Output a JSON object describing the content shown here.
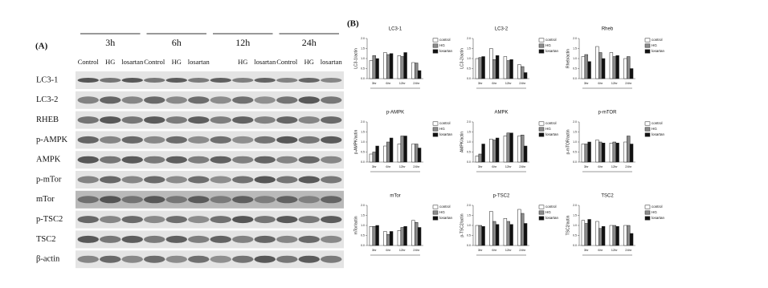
{
  "panel_a": {
    "label": "(A)",
    "groups": [
      {
        "time": "3h",
        "lanes": [
          "Control",
          "HG",
          "losartan"
        ]
      },
      {
        "time": "6h",
        "lanes": [
          "Control",
          "HG",
          "losartan"
        ]
      },
      {
        "time": "12h",
        "lanes": [
          "HG",
          "losartan"
        ]
      },
      {
        "time": "24h",
        "lanes": [
          "Control",
          "HG",
          "losartan"
        ]
      }
    ],
    "rows": [
      "LC3-1",
      "LC3-2",
      "RHEB",
      "p-AMPK",
      "AMPK",
      "p-mTor",
      "mTor",
      "p-TSC2",
      "TSC2",
      "β-actin"
    ]
  },
  "panel_b": {
    "label": "(B)"
  },
  "chart_data": [
    {
      "type": "bar",
      "title": "LC3-1",
      "y_label": "LC3-1/actin",
      "categories": [
        "3hr",
        "6hr",
        "12hr",
        "24hr"
      ],
      "ylim": [
        0,
        2
      ],
      "yticks": [
        {
          "value": 0,
          "label": "0.0"
        },
        {
          "value": 0.5,
          "label": "0.5"
        },
        {
          "value": 1,
          "label": "1.0"
        },
        {
          "value": 1.5,
          "label": "1.5"
        },
        {
          "value": 2,
          "label": "2.0"
        }
      ],
      "series": [
        {
          "name": "control",
          "color": "#ffffff",
          "values": [
            0.9,
            1.3,
            1.15,
            0.8
          ]
        },
        {
          "name": "HG",
          "color": "#8c8c8c",
          "values": [
            1.15,
            1.2,
            1.1,
            0.78
          ]
        },
        {
          "name": "losartan",
          "color": "#111111",
          "values": [
            1.0,
            1.25,
            1.3,
            0.4
          ]
        }
      ]
    },
    {
      "type": "bar",
      "title": "LC3-2",
      "y_label": "LC3-2/actin",
      "categories": [
        "3hr",
        "6hr",
        "12hr",
        "24hr"
      ],
      "ylim": [
        0,
        2
      ],
      "yticks": [
        {
          "value": 0,
          "label": "0.0"
        },
        {
          "value": 0.5,
          "label": "0.5"
        },
        {
          "value": 1,
          "label": "1.0"
        },
        {
          "value": 1.5,
          "label": "1.5"
        },
        {
          "value": 2,
          "label": "2.0"
        }
      ],
      "series": [
        {
          "name": "control",
          "color": "#ffffff",
          "values": [
            1.0,
            1.5,
            1.1,
            0.7
          ]
        },
        {
          "name": "HG",
          "color": "#8c8c8c",
          "values": [
            1.05,
            0.95,
            0.9,
            0.6
          ]
        },
        {
          "name": "losartan",
          "color": "#111111",
          "values": [
            1.1,
            1.15,
            0.95,
            0.3
          ]
        }
      ]
    },
    {
      "type": "bar",
      "title": "Rheb",
      "y_label": "Rheb/actin",
      "categories": [
        "3hr",
        "6hr",
        "12hr",
        "24hr"
      ],
      "ylim": [
        0,
        2
      ],
      "yticks": [
        {
          "value": 0,
          "label": "0.0"
        },
        {
          "value": 0.5,
          "label": "0.5"
        },
        {
          "value": 1,
          "label": "1.0"
        },
        {
          "value": 1.5,
          "label": "1.5"
        },
        {
          "value": 2,
          "label": "2.0"
        }
      ],
      "series": [
        {
          "name": "control",
          "color": "#ffffff",
          "values": [
            1.1,
            1.6,
            1.3,
            1.0
          ]
        },
        {
          "name": "HG",
          "color": "#8c8c8c",
          "values": [
            1.2,
            1.3,
            1.1,
            1.1
          ]
        },
        {
          "name": "losartan",
          "color": "#111111",
          "values": [
            0.85,
            1.0,
            1.15,
            0.5
          ]
        }
      ]
    },
    {
      "type": "bar",
      "title": "p-AMPK",
      "y_label": "p-AMPK/actin",
      "categories": [
        "3hr",
        "6hr",
        "12hr",
        "24hr"
      ],
      "ylim": [
        0,
        2
      ],
      "yticks": [
        {
          "value": 0,
          "label": "0.0"
        },
        {
          "value": 0.5,
          "label": "0.5"
        },
        {
          "value": 1,
          "label": "1.0"
        },
        {
          "value": 1.5,
          "label": "1.5"
        },
        {
          "value": 2,
          "label": "2.0"
        }
      ],
      "series": [
        {
          "name": "control",
          "color": "#ffffff",
          "values": [
            0.4,
            0.8,
            0.9,
            0.9
          ]
        },
        {
          "name": "HG",
          "color": "#8c8c8c",
          "values": [
            0.5,
            1.0,
            1.3,
            0.9
          ]
        },
        {
          "name": "losartan",
          "color": "#111111",
          "values": [
            0.8,
            1.2,
            1.3,
            0.7
          ]
        }
      ]
    },
    {
      "type": "bar",
      "title": "AMPK",
      "y_label": "AMPK/actin",
      "categories": [
        "3hr",
        "6hr",
        "12hr",
        "24hr"
      ],
      "ylim": [
        0,
        2
      ],
      "yticks": [
        {
          "value": 0,
          "label": "0.0"
        },
        {
          "value": 0.5,
          "label": "0.5"
        },
        {
          "value": 1,
          "label": "1.0"
        },
        {
          "value": 1.5,
          "label": "1.5"
        },
        {
          "value": 2,
          "label": "2.0"
        }
      ],
      "series": [
        {
          "name": "control",
          "color": "#ffffff",
          "values": [
            0.3,
            1.15,
            1.3,
            1.3
          ]
        },
        {
          "name": "HG",
          "color": "#8c8c8c",
          "values": [
            0.4,
            1.1,
            1.45,
            1.35
          ]
        },
        {
          "name": "losartan",
          "color": "#111111",
          "values": [
            0.9,
            1.2,
            1.45,
            0.8
          ]
        }
      ]
    },
    {
      "type": "bar",
      "title": "p-mTOR",
      "y_label": "p-mTOR/actin",
      "categories": [
        "3hr",
        "6hr",
        "12hr",
        "24hr"
      ],
      "ylim": [
        0,
        2
      ],
      "yticks": [
        {
          "value": 0,
          "label": "0.0"
        },
        {
          "value": 0.5,
          "label": "0.5"
        },
        {
          "value": 1,
          "label": "1.0"
        },
        {
          "value": 1.5,
          "label": "1.5"
        },
        {
          "value": 2,
          "label": "2.0"
        }
      ],
      "series": [
        {
          "name": "control",
          "color": "#ffffff",
          "values": [
            0.9,
            1.1,
            0.95,
            1.0
          ]
        },
        {
          "name": "HG",
          "color": "#8c8c8c",
          "values": [
            0.9,
            1.0,
            1.0,
            1.3
          ]
        },
        {
          "name": "losartan",
          "color": "#111111",
          "values": [
            1.0,
            0.95,
            0.95,
            0.9
          ]
        }
      ]
    },
    {
      "type": "bar",
      "title": "mTor",
      "y_label": "mTor/actin",
      "categories": [
        "3hr",
        "6hr",
        "12hr",
        "24hr"
      ],
      "ylim": [
        0,
        2
      ],
      "yticks": [
        {
          "value": 0,
          "label": "0.0"
        },
        {
          "value": 0.5,
          "label": "0.5"
        },
        {
          "value": 1,
          "label": "1.0"
        },
        {
          "value": 1.5,
          "label": "1.5"
        },
        {
          "value": 2,
          "label": "2.0"
        }
      ],
      "series": [
        {
          "name": "control",
          "color": "#ffffff",
          "values": [
            0.95,
            0.7,
            0.75,
            1.25
          ]
        },
        {
          "name": "HG",
          "color": "#8c8c8c",
          "values": [
            0.95,
            0.55,
            0.9,
            1.15
          ]
        },
        {
          "name": "losartan",
          "color": "#111111",
          "values": [
            1.0,
            0.7,
            0.95,
            0.9
          ]
        }
      ]
    },
    {
      "type": "bar",
      "title": "p-TSC2",
      "y_label": "p-TSC2/actin",
      "categories": [
        "3hr",
        "6hr",
        "12hr",
        "24hr"
      ],
      "ylim": [
        0,
        2
      ],
      "yticks": [
        {
          "value": 0,
          "label": "0.0"
        },
        {
          "value": 0.5,
          "label": "0.5"
        },
        {
          "value": 1,
          "label": "1.0"
        },
        {
          "value": 1.5,
          "label": "1.5"
        },
        {
          "value": 2,
          "label": "2.0"
        }
      ],
      "series": [
        {
          "name": "control",
          "color": "#ffffff",
          "values": [
            1.0,
            1.7,
            1.35,
            1.8
          ]
        },
        {
          "name": "HG",
          "color": "#8c8c8c",
          "values": [
            1.0,
            1.2,
            1.2,
            1.6
          ]
        },
        {
          "name": "losartan",
          "color": "#111111",
          "values": [
            0.95,
            1.05,
            1.05,
            1.1
          ]
        }
      ]
    },
    {
      "type": "bar",
      "title": "TSC2",
      "y_label": "TSC2/actin",
      "categories": [
        "3hr",
        "6hr",
        "12hr",
        "24hr"
      ],
      "ylim": [
        0,
        2
      ],
      "yticks": [
        {
          "value": 0,
          "label": "0.0"
        },
        {
          "value": 0.5,
          "label": "0.5"
        },
        {
          "value": 1,
          "label": "1.0"
        },
        {
          "value": 1.5,
          "label": "1.5"
        },
        {
          "value": 2,
          "label": "2.0"
        }
      ],
      "series": [
        {
          "name": "control",
          "color": "#ffffff",
          "values": [
            1.25,
            1.2,
            1.0,
            1.0
          ]
        },
        {
          "name": "HG",
          "color": "#8c8c8c",
          "values": [
            1.1,
            0.85,
            1.0,
            1.0
          ]
        },
        {
          "name": "losartan",
          "color": "#111111",
          "values": [
            1.3,
            0.95,
            0.95,
            0.6
          ]
        }
      ]
    }
  ]
}
